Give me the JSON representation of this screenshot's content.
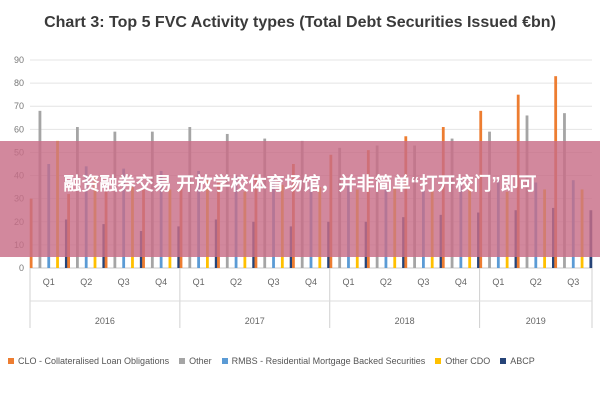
{
  "chart_data": {
    "type": "bar",
    "title": "Chart 3: Top 5 FVC Activity types (Total Debt Securities Issued €bn)",
    "ylim": [
      0,
      90
    ],
    "yticks": [
      0,
      10,
      20,
      30,
      40,
      50,
      60,
      70,
      80,
      90
    ],
    "grid": true,
    "legend_position": "bottom",
    "categories": [
      "Q1",
      "Q2",
      "Q3",
      "Q4",
      "Q1",
      "Q2",
      "Q3",
      "Q4",
      "Q1",
      "Q2",
      "Q3",
      "Q4",
      "Q1",
      "Q2",
      "Q3"
    ],
    "years": [
      {
        "label": "2016",
        "quarters": 4
      },
      {
        "label": "2017",
        "quarters": 4
      },
      {
        "label": "2018",
        "quarters": 4
      },
      {
        "label": "2019",
        "quarters": 3
      }
    ],
    "series": [
      {
        "name": "CLO - Collateralised Loan Obligations",
        "color": "#ED7D31",
        "values": [
          30,
          32,
          33,
          34,
          35,
          38,
          40,
          45,
          49,
          51,
          57,
          61,
          68,
          75,
          83
        ]
      },
      {
        "name": "Other",
        "color": "#A5A5A5",
        "values": [
          68,
          61,
          59,
          59,
          61,
          58,
          56,
          55,
          52,
          53,
          53,
          56,
          59,
          66,
          67
        ]
      },
      {
        "name": "RMBS - Residential Mortgage Backed Securities",
        "color": "#5B9BD5",
        "values": [
          45,
          44,
          43,
          42,
          42,
          40,
          39,
          37,
          36,
          35,
          34,
          38,
          38,
          37,
          38
        ]
      },
      {
        "name": "Other CDO",
        "color": "#FFC000",
        "values": [
          55,
          40,
          35,
          34,
          38,
          33,
          36,
          35,
          34,
          35,
          34,
          35,
          33,
          34,
          34
        ]
      },
      {
        "name": "ABCP",
        "color": "#264478",
        "values": [
          21,
          19,
          16,
          18,
          21,
          20,
          18,
          20,
          20,
          22,
          23,
          24,
          25,
          26,
          25
        ]
      }
    ]
  },
  "overlay": {
    "text": "融资融券交易 开放学校体育场馆，并非简单“打开校门”即可"
  }
}
